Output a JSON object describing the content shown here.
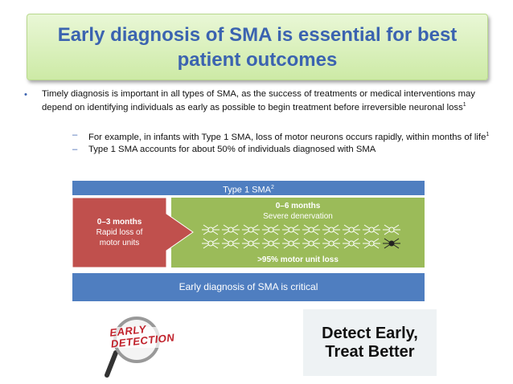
{
  "header": {
    "title": "Early diagnosis of SMA is essential for best patient outcomes"
  },
  "bullets": [
    {
      "text": "Timely diagnosis is important in all types of SMA, as the success of treatments or medical interventions may depend on identifying individuals as early as possible to begin treatment before irreversible neuronal loss",
      "ref": "1",
      "sub": [
        {
          "text": "For example, in infants with Type 1 SMA, loss of motor neurons occurs rapidly, within months of life",
          "ref": "1"
        },
        {
          "text": "Type 1 SMA accounts for about 50% of individuals diagnosed with SMA"
        }
      ]
    }
  ],
  "diagram": {
    "header": {
      "text": "Type 1 SMA",
      "ref": "2"
    },
    "early": {
      "period": "0–3 months",
      "label": "Rapid loss of motor units"
    },
    "late": {
      "period": "0–6 months",
      "label": "Severe denervation",
      "footer": ">95% motor unit loss"
    },
    "footer": "Early diagnosis of SMA is critical"
  },
  "images": {
    "badge": "EARLY DETECTION",
    "slogan_lines": [
      "Detect Early,",
      "Treat Better"
    ]
  }
}
